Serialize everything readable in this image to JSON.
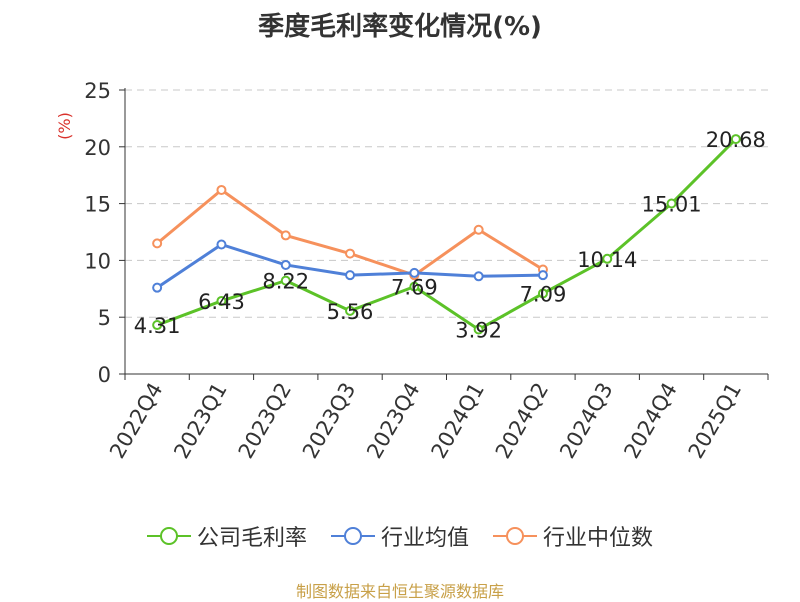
{
  "chart_data": {
    "type": "line",
    "title": "季度毛利率变化情况(%)",
    "ylabel": "(%)",
    "xlabel": "",
    "ylim": [
      0,
      25
    ],
    "yticks": [
      0,
      5,
      10,
      15,
      20,
      25
    ],
    "grid": true,
    "legend_position": "bottom",
    "categories": [
      "2022Q4",
      "2023Q1",
      "2023Q2",
      "2023Q3",
      "2023Q4",
      "2024Q1",
      "2024Q2",
      "2024Q3",
      "2024Q4",
      "2025Q1"
    ],
    "series": [
      {
        "name": "公司毛利率",
        "color": "#5cc228",
        "values": [
          4.31,
          6.43,
          8.22,
          5.56,
          7.69,
          3.92,
          7.09,
          10.14,
          15.01,
          20.68
        ],
        "show_labels": true
      },
      {
        "name": "行业均值",
        "color": "#4f80d8",
        "values": [
          7.6,
          11.4,
          9.6,
          8.7,
          8.9,
          8.6,
          8.7,
          null,
          null,
          null
        ],
        "show_labels": false
      },
      {
        "name": "行业中位数",
        "color": "#f6915c",
        "values": [
          11.5,
          16.2,
          12.2,
          10.6,
          8.7,
          12.7,
          9.2,
          null,
          null,
          null
        ],
        "show_labels": false
      }
    ]
  },
  "source_note": "制图数据来自恒生聚源数据库"
}
